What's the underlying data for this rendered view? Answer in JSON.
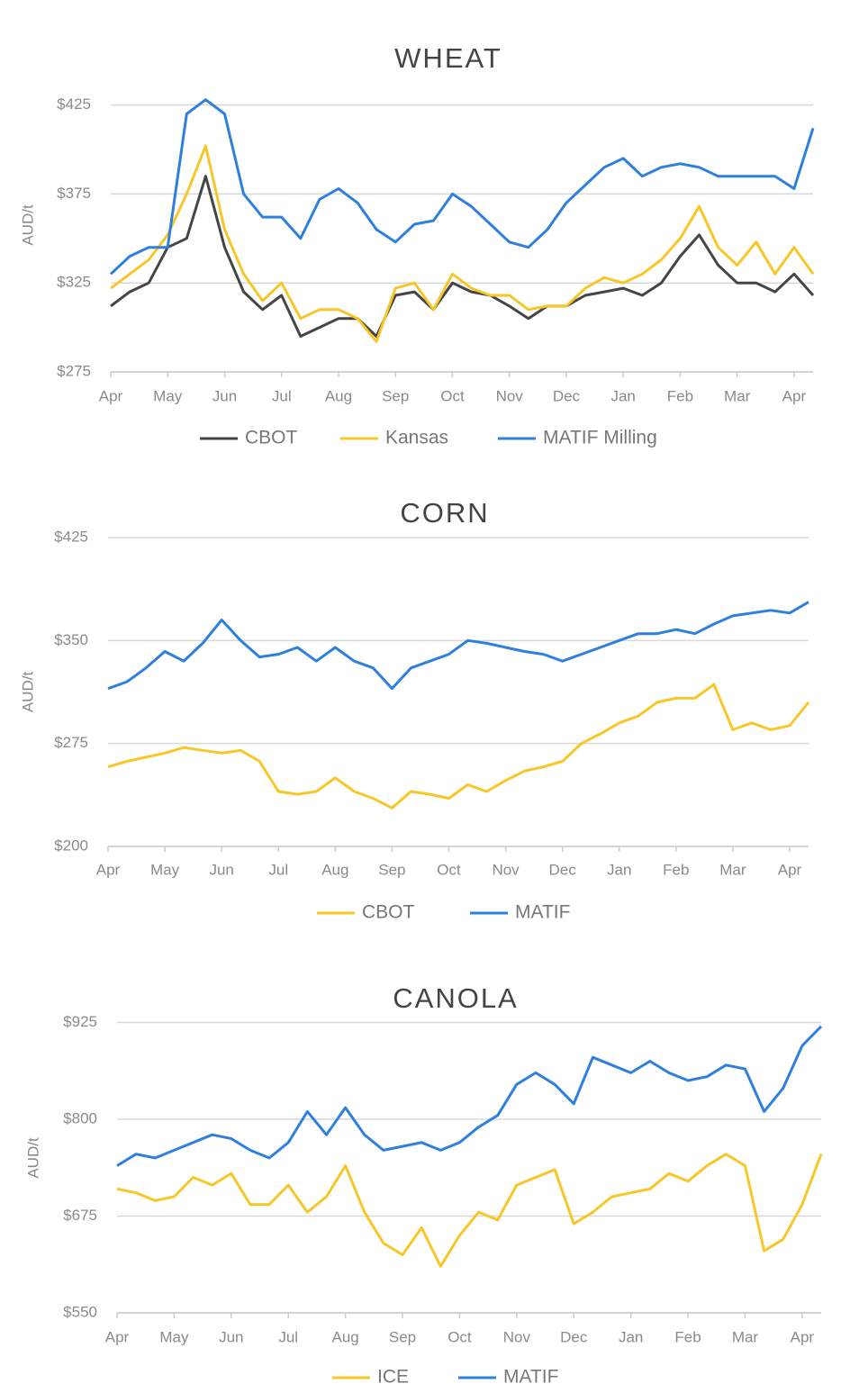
{
  "chart_data": [
    {
      "type": "line",
      "title": "WHEAT",
      "y_label": "AUD/t",
      "categories": [
        "Apr",
        null,
        null,
        "May",
        null,
        null,
        "Jun",
        null,
        null,
        "Jul",
        null,
        null,
        "Aug",
        null,
        null,
        "Sep",
        null,
        null,
        "Oct",
        null,
        null,
        "Nov",
        null,
        null,
        "Dec",
        null,
        null,
        "Jan",
        null,
        null,
        "Feb",
        null,
        null,
        "Mar",
        null,
        null,
        "Apr",
        null
      ],
      "series": [
        {
          "name": "CBOT",
          "color": "#454545",
          "values": [
            312,
            320,
            325,
            345,
            350,
            385,
            345,
            320,
            310,
            318,
            295,
            300,
            305,
            305,
            295,
            318,
            320,
            310,
            325,
            320,
            318,
            312,
            305,
            312,
            312,
            318,
            320,
            322,
            318,
            325,
            340,
            352,
            335,
            325,
            325,
            320,
            330,
            318
          ]
        },
        {
          "name": "Kansas",
          "color": "#f7c72a",
          "values": [
            322,
            330,
            338,
            352,
            375,
            402,
            355,
            330,
            315,
            325,
            305,
            310,
            310,
            305,
            292,
            322,
            325,
            310,
            330,
            322,
            318,
            318,
            310,
            312,
            312,
            322,
            328,
            325,
            330,
            338,
            350,
            368,
            345,
            335,
            348,
            330,
            345,
            330
          ]
        },
        {
          "name": "MATIF Milling",
          "color": "#2f7fdc",
          "values": [
            330,
            340,
            345,
            345,
            420,
            428,
            420,
            375,
            362,
            362,
            350,
            372,
            378,
            370,
            355,
            348,
            358,
            360,
            375,
            368,
            358,
            348,
            345,
            355,
            370,
            380,
            390,
            395,
            385,
            390,
            392,
            390,
            385,
            385,
            385,
            385,
            378,
            412
          ]
        }
      ],
      "ylim": [
        275,
        440
      ],
      "yticks": [
        {
          "value": 275,
          "label": "$275"
        },
        {
          "value": 325,
          "label": "$325"
        },
        {
          "value": 375,
          "label": "$375"
        },
        {
          "value": 425,
          "label": "$425"
        }
      ],
      "grid": true,
      "legend": "bottom"
    },
    {
      "type": "line",
      "title": "CORN",
      "y_label": "AUD/t",
      "categories": [
        "Apr",
        null,
        null,
        "May",
        null,
        null,
        "Jun",
        null,
        null,
        "Jul",
        null,
        null,
        "Aug",
        null,
        null,
        "Sep",
        null,
        null,
        "Oct",
        null,
        null,
        "Nov",
        null,
        null,
        "Dec",
        null,
        null,
        "Jan",
        null,
        null,
        "Feb",
        null,
        null,
        "Mar",
        null,
        null,
        "Apr",
        null
      ],
      "series": [
        {
          "name": "CBOT",
          "color": "#f7c72a",
          "values": [
            258,
            262,
            265,
            268,
            272,
            270,
            268,
            270,
            262,
            240,
            238,
            240,
            250,
            240,
            235,
            228,
            240,
            238,
            235,
            245,
            240,
            248,
            255,
            258,
            262,
            275,
            282,
            290,
            295,
            305,
            308,
            308,
            318,
            285,
            290,
            285,
            288,
            305
          ]
        },
        {
          "name": "MATIF",
          "color": "#2f7fdc",
          "values": [
            315,
            320,
            330,
            342,
            335,
            348,
            365,
            350,
            338,
            340,
            345,
            335,
            345,
            335,
            330,
            315,
            330,
            335,
            340,
            350,
            348,
            345,
            342,
            340,
            335,
            340,
            345,
            350,
            355,
            355,
            358,
            355,
            362,
            368,
            370,
            372,
            370,
            378
          ]
        }
      ],
      "ylim": [
        200,
        425
      ],
      "yticks": [
        {
          "value": 200,
          "label": "$200"
        },
        {
          "value": 275,
          "label": "$275"
        },
        {
          "value": 350,
          "label": "$350"
        },
        {
          "value": 425,
          "label": "$425"
        }
      ],
      "grid": true,
      "legend": "bottom"
    },
    {
      "type": "line",
      "title": "CANOLA",
      "y_label": "AUD/t",
      "categories": [
        "Apr",
        null,
        null,
        "May",
        null,
        null,
        "Jun",
        null,
        null,
        "Jul",
        null,
        null,
        "Aug",
        null,
        null,
        "Sep",
        null,
        null,
        "Oct",
        null,
        null,
        "Nov",
        null,
        null,
        "Dec",
        null,
        null,
        "Jan",
        null,
        null,
        "Feb",
        null,
        null,
        "Mar",
        null,
        null,
        "Apr",
        null
      ],
      "series": [
        {
          "name": "ICE",
          "color": "#f7c72a",
          "values": [
            710,
            705,
            695,
            700,
            725,
            715,
            730,
            690,
            690,
            715,
            680,
            700,
            740,
            680,
            640,
            625,
            660,
            610,
            650,
            680,
            670,
            715,
            725,
            735,
            665,
            680,
            700,
            705,
            710,
            730,
            720,
            740,
            755,
            740,
            630,
            645,
            690,
            755
          ]
        },
        {
          "name": "MATIF",
          "color": "#2f7fdc",
          "values": [
            740,
            755,
            750,
            760,
            770,
            780,
            775,
            760,
            750,
            770,
            810,
            780,
            815,
            780,
            760,
            765,
            770,
            760,
            770,
            790,
            805,
            845,
            860,
            845,
            820,
            880,
            870,
            860,
            875,
            860,
            850,
            855,
            870,
            865,
            810,
            840,
            895,
            920
          ]
        }
      ],
      "ylim": [
        550,
        950
      ],
      "yticks": [
        {
          "value": 550,
          "label": "$550"
        },
        {
          "value": 675,
          "label": "$675"
        },
        {
          "value": 800,
          "label": "$800"
        },
        {
          "value": 925,
          "label": "$925"
        }
      ],
      "grid": true,
      "legend": "bottom"
    }
  ]
}
